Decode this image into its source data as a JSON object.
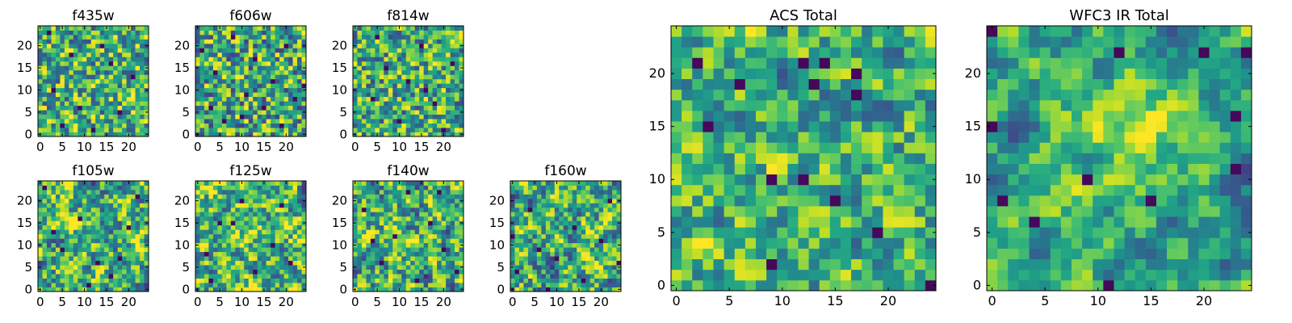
{
  "figure": {
    "description_free": true,
    "colormap": "viridis",
    "colors": {
      "low": "#440154",
      "mid": "#21918c",
      "high": "#fde725",
      "frame": "#000000",
      "background": "#ffffff"
    }
  },
  "chart_data": [
    {
      "type": "heatmap",
      "title": "f435w",
      "grid_size": 25,
      "xticks": [
        0,
        5,
        10,
        15,
        20
      ],
      "yticks": [
        0,
        5,
        10,
        15,
        20
      ],
      "xtick_labels": [
        "0",
        "5",
        "10",
        "15",
        "20"
      ],
      "ytick_labels": [
        "0",
        "5",
        "10",
        "15",
        "20"
      ],
      "value_range": [
        0,
        1
      ],
      "mean": 0.62,
      "spread": 0.22,
      "smoothness": 0,
      "seed": 11,
      "dark_cells": [
        [
          3,
          10
        ],
        [
          5,
          2
        ],
        [
          7,
          18
        ],
        [
          12,
          1
        ],
        [
          14,
          20
        ],
        [
          18,
          5
        ],
        [
          21,
          13
        ],
        [
          2,
          23
        ],
        [
          9,
          6
        ],
        [
          16,
          16
        ]
      ]
    },
    {
      "type": "heatmap",
      "title": "f606w",
      "grid_size": 25,
      "xticks": [
        0,
        5,
        10,
        15,
        20
      ],
      "yticks": [
        0,
        5,
        10,
        15,
        20
      ],
      "xtick_labels": [
        "0",
        "5",
        "10",
        "15",
        "20"
      ],
      "ytick_labels": [
        "0",
        "5",
        "10",
        "15",
        "20"
      ],
      "value_range": [
        0,
        1
      ],
      "mean": 0.6,
      "spread": 0.24,
      "smoothness": 0,
      "seed": 23,
      "dark_cells": [
        [
          1,
          19
        ],
        [
          4,
          14
        ],
        [
          6,
          3
        ],
        [
          8,
          22
        ],
        [
          11,
          9
        ],
        [
          13,
          17
        ],
        [
          15,
          6
        ],
        [
          17,
          12
        ],
        [
          19,
          2
        ],
        [
          20,
          20
        ],
        [
          22,
          8
        ],
        [
          24,
          11
        ],
        [
          10,
          4
        ],
        [
          3,
          6
        ]
      ]
    },
    {
      "type": "heatmap",
      "title": "f814w",
      "grid_size": 25,
      "xticks": [
        0,
        5,
        10,
        15,
        20
      ],
      "yticks": [
        0,
        5,
        10,
        15,
        20
      ],
      "xtick_labels": [
        "0",
        "5",
        "10",
        "15",
        "20"
      ],
      "ytick_labels": [
        "0",
        "5",
        "10",
        "15",
        "20"
      ],
      "value_range": [
        0,
        1
      ],
      "mean": 0.63,
      "spread": 0.22,
      "smoothness": 0,
      "seed": 37,
      "dark_cells": [
        [
          4,
          8
        ],
        [
          7,
          15
        ],
        [
          10,
          3
        ],
        [
          12,
          12
        ],
        [
          15,
          20
        ],
        [
          18,
          7
        ],
        [
          20,
          1
        ],
        [
          22,
          16
        ],
        [
          5,
          22
        ],
        [
          16,
          10
        ]
      ]
    },
    {
      "type": "heatmap",
      "title": "f105w",
      "grid_size": 25,
      "xticks": [
        0,
        5,
        10,
        15,
        20
      ],
      "yticks": [
        0,
        5,
        10,
        15,
        20
      ],
      "xtick_labels": [
        "0",
        "5",
        "10",
        "15",
        "20"
      ],
      "ytick_labels": [
        "0",
        "5",
        "10",
        "15",
        "20"
      ],
      "value_range": [
        0,
        1
      ],
      "mean": 0.64,
      "spread": 0.22,
      "smoothness": 1,
      "seed": 41,
      "dark_cells": [
        [
          1,
          23
        ],
        [
          3,
          13
        ],
        [
          5,
          9
        ],
        [
          9,
          16
        ],
        [
          13,
          6
        ],
        [
          18,
          7
        ],
        [
          20,
          14
        ],
        [
          22,
          21
        ],
        [
          11,
          1
        ],
        [
          16,
          3
        ]
      ]
    },
    {
      "type": "heatmap",
      "title": "f125w",
      "grid_size": 25,
      "xticks": [
        0,
        5,
        10,
        15,
        20
      ],
      "yticks": [
        0,
        5,
        10,
        15,
        20
      ],
      "xtick_labels": [
        "0",
        "5",
        "10",
        "15",
        "20"
      ],
      "ytick_labels": [
        "0",
        "5",
        "10",
        "15",
        "20"
      ],
      "value_range": [
        0,
        1
      ],
      "mean": 0.66,
      "spread": 0.22,
      "smoothness": 1,
      "seed": 53,
      "dark_cells": [
        [
          2,
          8
        ],
        [
          5,
          15
        ],
        [
          8,
          15
        ],
        [
          13,
          4
        ],
        [
          17,
          10
        ],
        [
          19,
          19
        ],
        [
          3,
          2
        ],
        [
          21,
          6
        ],
        [
          10,
          20
        ]
      ]
    },
    {
      "type": "heatmap",
      "title": "f140w",
      "grid_size": 25,
      "xticks": [
        0,
        5,
        10,
        15,
        20
      ],
      "yticks": [
        0,
        5,
        10,
        15,
        20
      ],
      "xtick_labels": [
        "0",
        "5",
        "10",
        "15",
        "20"
      ],
      "ytick_labels": [
        "0",
        "5",
        "10",
        "15",
        "20"
      ],
      "value_range": [
        0,
        1
      ],
      "mean": 0.64,
      "spread": 0.22,
      "smoothness": 1,
      "seed": 67,
      "dark_cells": [
        [
          2,
          18
        ],
        [
          6,
          6
        ],
        [
          9,
          12
        ],
        [
          12,
          22
        ],
        [
          14,
          2
        ],
        [
          17,
          15
        ],
        [
          20,
          9
        ],
        [
          23,
          4
        ],
        [
          4,
          11
        ],
        [
          19,
          22
        ]
      ]
    },
    {
      "type": "heatmap",
      "title": "f160w",
      "grid_size": 25,
      "xticks": [
        0,
        5,
        10,
        15,
        20
      ],
      "yticks": [
        0,
        5,
        10,
        15,
        20
      ],
      "xtick_labels": [
        "0",
        "5",
        "10",
        "15",
        "20"
      ],
      "ytick_labels": [
        "0",
        "5",
        "10",
        "15",
        "20"
      ],
      "value_range": [
        0,
        1
      ],
      "mean": 0.62,
      "spread": 0.22,
      "smoothness": 1,
      "seed": 79,
      "dark_cells": [
        [
          0,
          12
        ],
        [
          1,
          4
        ],
        [
          4,
          18
        ],
        [
          8,
          0
        ],
        [
          10,
          7
        ],
        [
          14,
          14
        ],
        [
          16,
          2
        ],
        [
          20,
          11
        ],
        [
          22,
          20
        ],
        [
          24,
          6
        ],
        [
          6,
          9
        ]
      ]
    },
    {
      "type": "heatmap",
      "title": "ACS Total",
      "grid_size": 25,
      "xticks": [
        0,
        5,
        10,
        15,
        20
      ],
      "yticks": [
        0,
        5,
        10,
        15,
        20
      ],
      "xtick_labels": [
        "0",
        "5",
        "10",
        "15",
        "20"
      ],
      "ytick_labels": [
        "0",
        "5",
        "10",
        "15",
        "20"
      ],
      "value_range": [
        0,
        1
      ],
      "mean": 0.64,
      "spread": 0.18,
      "smoothness": 1,
      "seed": 97,
      "dark_cells": [
        [
          3,
          15
        ],
        [
          9,
          10
        ],
        [
          12,
          10
        ],
        [
          15,
          8
        ],
        [
          17,
          18
        ],
        [
          19,
          5
        ],
        [
          12,
          21
        ],
        [
          14,
          21
        ],
        [
          13,
          19
        ],
        [
          17,
          20
        ],
        [
          9,
          2
        ],
        [
          24,
          0
        ],
        [
          2,
          21
        ],
        [
          6,
          19
        ]
      ]
    },
    {
      "type": "heatmap",
      "title": "WFC3 IR Total",
      "grid_size": 25,
      "xticks": [
        0,
        5,
        10,
        15,
        20
      ],
      "yticks": [
        0,
        5,
        10,
        15,
        20
      ],
      "xtick_labels": [
        "0",
        "5",
        "10",
        "15",
        "20"
      ],
      "ytick_labels": [
        "0",
        "5",
        "10",
        "15",
        "20"
      ],
      "value_range": [
        0,
        1
      ],
      "mean": 0.58,
      "spread": 0.15,
      "smoothness": 2,
      "seed": 113,
      "dark_cells": [
        [
          0,
          24
        ],
        [
          0,
          15
        ],
        [
          1,
          8
        ],
        [
          4,
          6
        ],
        [
          9,
          10
        ],
        [
          11,
          0
        ],
        [
          20,
          22
        ],
        [
          23,
          16
        ],
        [
          24,
          22
        ],
        [
          15,
          8
        ],
        [
          12,
          22
        ],
        [
          23,
          11
        ]
      ],
      "bright_center": [
        13,
        13
      ]
    }
  ]
}
